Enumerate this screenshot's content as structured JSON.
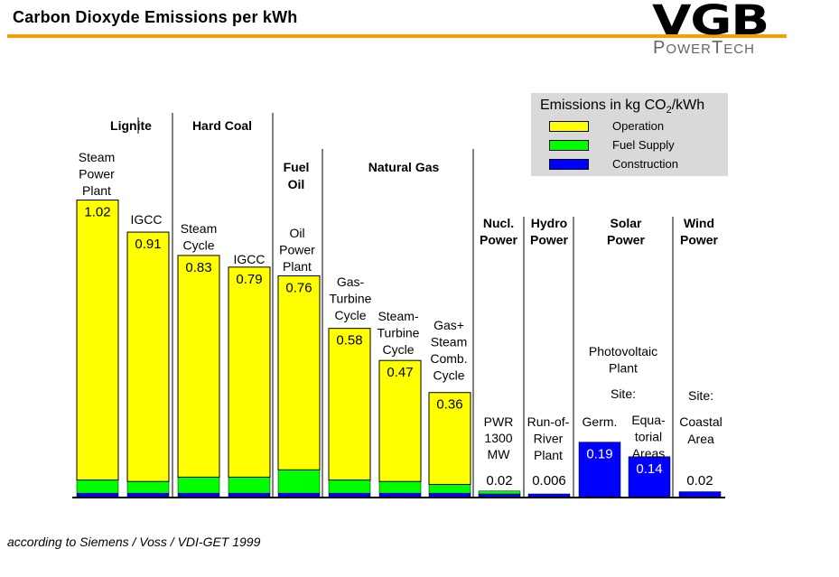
{
  "header": {
    "title": "Carbon Dioxyde Emissions per kWh",
    "logo_main": "VGB",
    "logo_sub": "PowerTech"
  },
  "footer": {
    "source": "according to Siemens / Voss / VDI-GET 1999"
  },
  "colors": {
    "operation": "#ffff00",
    "fuel_supply": "#00ff00",
    "construction": "#0000ff",
    "accent": "#f5a000",
    "legend_bg": "#d9d9d9"
  },
  "chart_data": {
    "type": "bar",
    "stacked": true,
    "title": "Carbon Dioxyde Emissions per kWh",
    "legend": {
      "title_prefix": "Emissions in kg CO",
      "title_sub": "2",
      "title_suffix": "/kWh",
      "placement": "top-right",
      "entries": [
        "Operation",
        "Fuel Supply",
        "Construction"
      ]
    },
    "groups": [
      "Lignite",
      "Hard Coal",
      "Fuel Oil",
      "Natural Gas",
      "Nucl. Power",
      "Hydro Power",
      "Solar Power",
      "Wind Power"
    ],
    "series_names": [
      "Operation",
      "Fuel Supply",
      "Construction"
    ],
    "bars": [
      {
        "category": "Steam Power Plant",
        "group": "Lignite",
        "total": 1.02,
        "label": "1.02",
        "fuel_supply": 0.045,
        "construction": 0.015
      },
      {
        "category": "IGCC",
        "group": "Lignite",
        "total": 0.91,
        "label": "0.91",
        "fuel_supply": 0.04,
        "construction": 0.015
      },
      {
        "category": "Steam Cycle",
        "group": "Hard Coal",
        "total": 0.83,
        "label": "0.83",
        "fuel_supply": 0.055,
        "construction": 0.015
      },
      {
        "category": "IGCC",
        "group": "Hard Coal",
        "total": 0.79,
        "label": "0.79",
        "fuel_supply": 0.055,
        "construction": 0.015
      },
      {
        "category": "Oil Power Plant",
        "group": "Fuel Oil",
        "total": 0.76,
        "label": "0.76",
        "fuel_supply": 0.08,
        "construction": 0.015
      },
      {
        "category": "Gas-Turbine Cycle",
        "group": "Natural Gas",
        "total": 0.58,
        "label": "0.58",
        "fuel_supply": 0.045,
        "construction": 0.015
      },
      {
        "category": "Steam-Turbine Cycle",
        "group": "Natural Gas",
        "total": 0.47,
        "label": "0.47",
        "fuel_supply": 0.04,
        "construction": 0.015
      },
      {
        "category": "Gas+ Steam Comb. Cycle",
        "group": "Natural Gas",
        "total": 0.36,
        "label": "0.36",
        "fuel_supply": 0.03,
        "construction": 0.015
      },
      {
        "category": "PWR 1300 MW",
        "group": "Nucl. Power",
        "total": 0.02,
        "label": "0.02",
        "fuel_supply": 0.01,
        "construction": 0.01
      },
      {
        "category": "Run-of-River Plant",
        "group": "Hydro Power",
        "total": 0.006,
        "label": "0.006",
        "fuel_supply": 0.0,
        "construction": 0.006
      },
      {
        "category": "Germ.",
        "group": "Solar Power",
        "total": 0.19,
        "label": "0.19",
        "fuel_supply": 0.0,
        "construction": 0.19
      },
      {
        "category": "Equatorial Areas",
        "group": "Solar Power",
        "total": 0.14,
        "label": "0.14",
        "fuel_supply": 0.0,
        "construction": 0.14
      },
      {
        "category": "Coastal Area",
        "group": "Wind Power",
        "total": 0.02,
        "label": "0.02",
        "fuel_supply": 0.0,
        "construction": 0.02
      }
    ],
    "annotations": {
      "steam_power_plant": [
        "Steam",
        "Power",
        "Plant"
      ],
      "igcc_lignite": [
        "IGCC"
      ],
      "steam_cycle": [
        "Steam",
        "Cycle"
      ],
      "igcc_coal": [
        "IGCC"
      ],
      "oil_power_plant": [
        "Oil",
        "Power",
        "Plant"
      ],
      "gas_turbine": [
        "Gas-",
        "Turbine",
        "Cycle"
      ],
      "steam_turbine": [
        "Steam-",
        "Turbine",
        "Cycle"
      ],
      "comb_cycle": [
        "Gas+",
        "Steam",
        "Comb.",
        "Cycle"
      ],
      "pwr": [
        "PWR",
        "1300",
        "MW"
      ],
      "run_of_river": [
        "Run-of-",
        "River",
        "Plant"
      ],
      "photovoltaic": [
        "Photovoltaic",
        "Plant"
      ],
      "solar_site": "Site:",
      "germ": "Germ.",
      "equatorial": [
        "Equa-",
        "torial",
        "Areas"
      ],
      "wind_site": "Site:",
      "coastal": [
        "Coastal",
        "Area"
      ]
    },
    "group_labels": {
      "lignite": [
        "Lignite"
      ],
      "hard_coal": [
        "Hard Coal"
      ],
      "fuel_oil": [
        "Fuel",
        "Oil"
      ],
      "natural_gas": [
        "Natural Gas"
      ],
      "nucl": [
        "Nucl.",
        "Power"
      ],
      "hydro": [
        "Hydro",
        "Power"
      ],
      "solar": [
        "Solar",
        "Power"
      ],
      "wind": [
        "Wind",
        "Power"
      ]
    }
  }
}
